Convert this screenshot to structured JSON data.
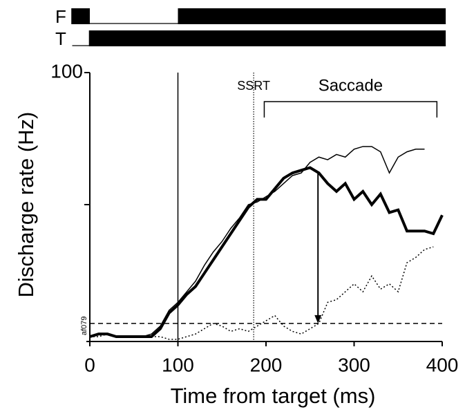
{
  "chart_data": {
    "type": "line",
    "xlabel": "Time from target (ms)",
    "ylabel": "Discharge  rate (Hz)",
    "x": [
      0,
      10,
      20,
      30,
      40,
      50,
      60,
      70,
      80,
      90,
      100,
      110,
      120,
      130,
      140,
      150,
      160,
      170,
      180,
      190,
      200,
      210,
      220,
      230,
      240,
      250,
      260,
      270,
      280,
      290,
      300,
      310,
      320,
      330,
      340,
      350,
      360,
      370,
      380,
      390,
      400
    ],
    "series": [
      {
        "name": "thin",
        "color": "#000000",
        "width": 1.5,
        "dash": "none",
        "values": [
          0,
          1,
          1,
          0,
          0,
          0,
          0,
          1,
          4,
          10,
          13,
          17,
          21,
          27,
          32,
          36,
          41,
          45,
          50,
          51,
          53,
          55,
          58,
          61,
          62,
          66,
          68,
          67,
          69,
          68,
          71,
          72,
          72,
          70,
          62,
          68,
          70,
          71,
          71,
          null,
          null
        ]
      },
      {
        "name": "thick",
        "color": "#000000",
        "width": 4,
        "dash": "none",
        "values": [
          0,
          1,
          1,
          0,
          0,
          0,
          0,
          0,
          3,
          9,
          12,
          16,
          19,
          24,
          29,
          34,
          39,
          44,
          49,
          52,
          52,
          56,
          60,
          62,
          63,
          64,
          62,
          58,
          55,
          58,
          52,
          55,
          50,
          54,
          47,
          48,
          40,
          40,
          40,
          39,
          46
        ]
      },
      {
        "name": "dotted",
        "color": "#000000",
        "width": 1.5,
        "dash": "2 3",
        "values": [
          0,
          0,
          1,
          0,
          0,
          0,
          0,
          0,
          0,
          -1,
          -1,
          0,
          1,
          3,
          5,
          4,
          2,
          3,
          2,
          4,
          6,
          8,
          4,
          2,
          1,
          3,
          5,
          13,
          14,
          17,
          20,
          17,
          23,
          18,
          20,
          17,
          28,
          30,
          33,
          34,
          null
        ]
      }
    ],
    "xlim": [
      0,
      400
    ],
    "ylim": [
      0,
      100
    ],
    "xticks": [
      0,
      100,
      200,
      300,
      400
    ],
    "yticks": [
      100
    ],
    "y_minor_ticks": [
      50
    ],
    "threshold": 5,
    "markers": [
      {
        "x": 100,
        "style": "solid"
      },
      {
        "x": 186,
        "style": "dotted",
        "label": "SSRT"
      }
    ],
    "saccade": {
      "label": "Saccade",
      "x": [
        198,
        394
      ]
    },
    "arrow": {
      "x": 259,
      "from": 62,
      "to": 5
    },
    "cell_id": "af079",
    "event_start": -20,
    "events": [
      {
        "label": "F",
        "on": [
          [
            -21,
            0
          ],
          [
            100,
            404
          ]
        ]
      },
      {
        "label": "T",
        "on": [
          [
            -1,
            404
          ]
        ]
      }
    ]
  }
}
